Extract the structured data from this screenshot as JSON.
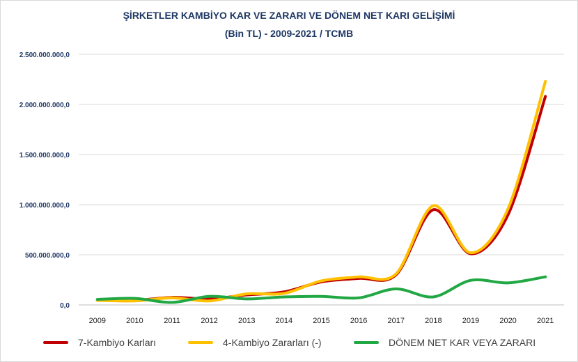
{
  "chart_data": {
    "type": "line",
    "title": "ŞİRKETLER KAMBİYO KAR VE ZARARI VE DÖNEM NET KARI GELİŞİMİ",
    "subtitle": "(Bin TL) - 2009-2021 / TCMB",
    "x": [
      "2009",
      "2010",
      "2011",
      "2012",
      "2013",
      "2014",
      "2015",
      "2016",
      "2017",
      "2018",
      "2019",
      "2020",
      "2021"
    ],
    "ylim": [
      0,
      2500000000
    ],
    "yticks": [
      0,
      500000000,
      1000000000,
      1500000000,
      2000000000,
      2500000000
    ],
    "ytick_labels": [
      "0,0",
      "500.000.000,0",
      "1.000.000.000,0",
      "1.500.000.000,0",
      "2.000.000.000,0",
      "2.500.000.000,0"
    ],
    "grid": true,
    "legend_position": "bottom",
    "series": [
      {
        "name": "7-Kambiyo Karları",
        "color": "#c00000",
        "values": [
          50000000,
          45000000,
          75000000,
          60000000,
          100000000,
          130000000,
          230000000,
          265000000,
          300000000,
          950000000,
          510000000,
          900000000,
          2080000000
        ]
      },
      {
        "name": "4-Kambiyo Zararları (-)",
        "color": "#ffc000",
        "values": [
          45000000,
          40000000,
          70000000,
          40000000,
          110000000,
          115000000,
          240000000,
          280000000,
          310000000,
          990000000,
          520000000,
          960000000,
          2230000000
        ]
      },
      {
        "name": "DÖNEM NET KAR VEYA ZARARI",
        "color": "#21a844",
        "values": [
          55000000,
          65000000,
          25000000,
          85000000,
          60000000,
          80000000,
          85000000,
          70000000,
          160000000,
          80000000,
          245000000,
          220000000,
          280000000
        ]
      }
    ]
  }
}
